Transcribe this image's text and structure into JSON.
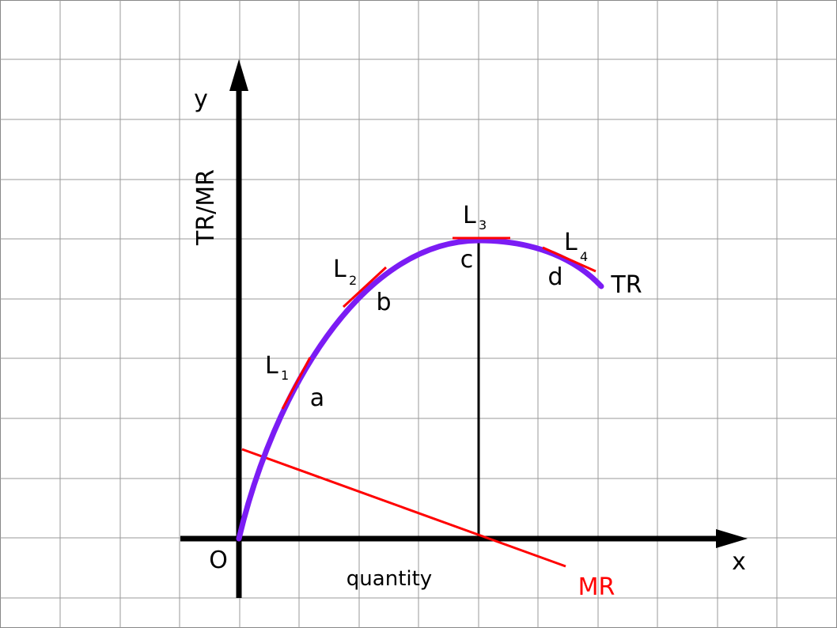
{
  "axes": {
    "y_label": "y",
    "y_title": "TR/MR",
    "origin": "O",
    "x_title": "quantity",
    "x_label": "x"
  },
  "curves": {
    "tr": "TR",
    "mr": "MR"
  },
  "points": {
    "a": "a",
    "b": "b",
    "c": "c",
    "d": "d"
  },
  "tangents": [
    {
      "main": "L",
      "sub": "1"
    },
    {
      "main": "L",
      "sub": "2"
    },
    {
      "main": "L",
      "sub": "3"
    },
    {
      "main": "L",
      "sub": "4"
    }
  ]
}
